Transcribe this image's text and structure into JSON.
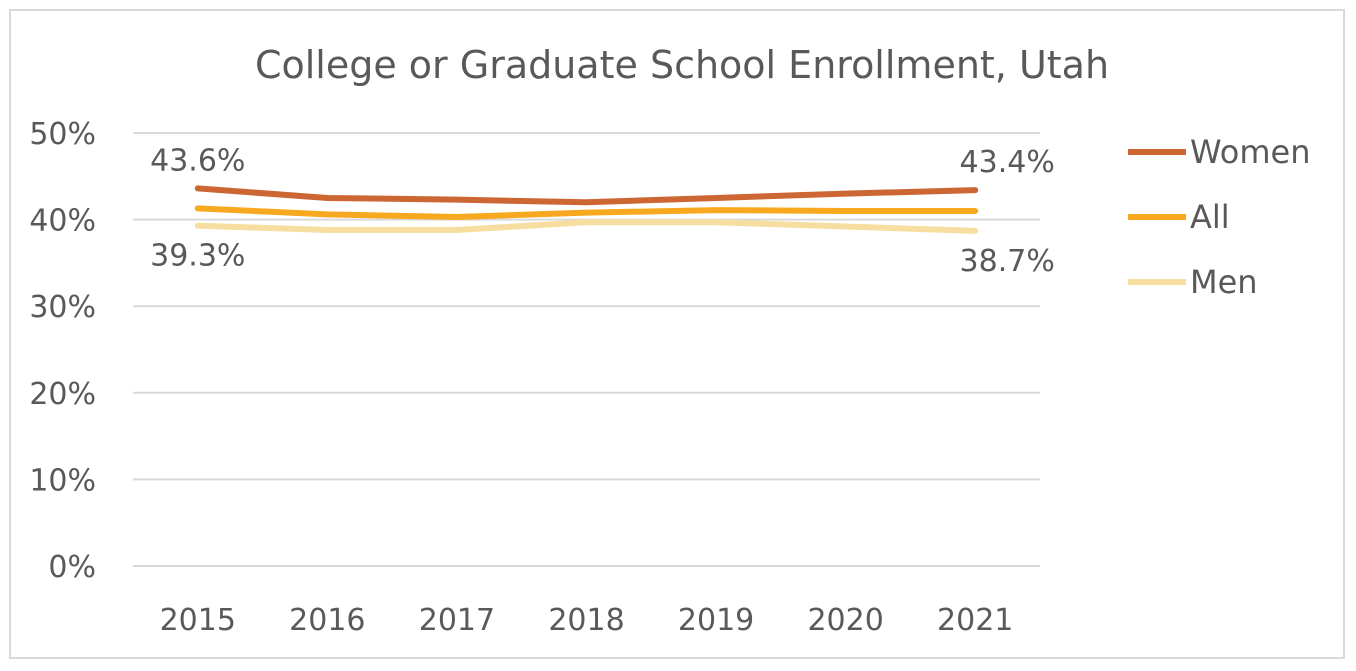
{
  "chart_data": {
    "type": "line",
    "title": "College or Graduate School Enrollment, Utah",
    "categories": [
      "2015",
      "2016",
      "2017",
      "2018",
      "2019",
      "2020",
      "2021"
    ],
    "ylim": [
      0,
      50
    ],
    "yticks": [
      "0%",
      "10%",
      "20%",
      "30%",
      "40%",
      "50%"
    ],
    "ytick_values": [
      0,
      10,
      20,
      30,
      40,
      50
    ],
    "grid": true,
    "legend_position": "right",
    "series": [
      {
        "name": "Women",
        "color": "#cc6633",
        "values": [
          43.6,
          42.5,
          42.3,
          42.0,
          42.5,
          43.0,
          43.4
        ],
        "labels": {
          "first": "43.6%",
          "last": "43.4%"
        }
      },
      {
        "name": "All",
        "color": "#f8a81e",
        "values": [
          41.3,
          40.6,
          40.3,
          40.8,
          41.1,
          41.0,
          41.0
        ]
      },
      {
        "name": "Men",
        "color": "#f6dea0",
        "values": [
          39.3,
          38.8,
          38.8,
          39.7,
          39.7,
          39.2,
          38.7
        ],
        "labels": {
          "first": "39.3%",
          "last": "38.7%"
        }
      }
    ]
  }
}
